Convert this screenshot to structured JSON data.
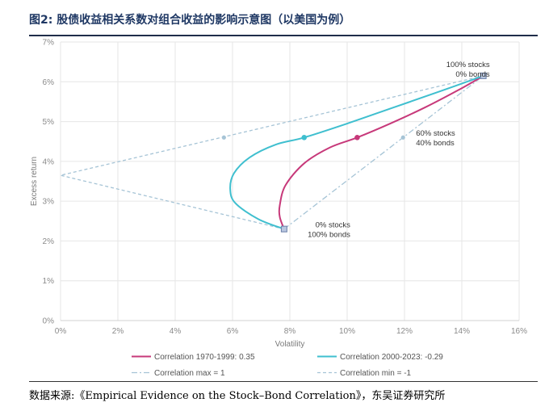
{
  "header": {
    "title": "图2:  股债收益相关系数对组合收益的影响示意图（以美国为例）"
  },
  "footer": {
    "source": "数据来源:《Empirical Evidence on the Stock–Bond Correlation》，东吴证券研究所"
  },
  "chart_data": {
    "type": "line",
    "xlabel": "Volatility",
    "ylabel": "Excess return",
    "xlim": [
      0,
      16
    ],
    "ylim": [
      0,
      7
    ],
    "x_ticks": [
      "0%",
      "2%",
      "4%",
      "6%",
      "8%",
      "10%",
      "12%",
      "14%",
      "16%"
    ],
    "y_ticks": [
      "0%",
      "1%",
      "2%",
      "3%",
      "4%",
      "5%",
      "6%",
      "7%"
    ],
    "grid": true,
    "legend_position": "bottom",
    "series": [
      {
        "name": "Correlation 1970-1999: 0.35",
        "color": "#c7397a",
        "style": "solid",
        "points": [
          [
            7.8,
            2.3
          ],
          [
            7.65,
            2.6
          ],
          [
            7.65,
            2.9
          ],
          [
            7.85,
            3.4
          ],
          [
            8.5,
            3.95
          ],
          [
            9.4,
            4.35
          ],
          [
            10.35,
            4.6
          ],
          [
            11.5,
            4.95
          ],
          [
            12.7,
            5.35
          ],
          [
            13.9,
            5.8
          ],
          [
            14.75,
            6.15
          ]
        ],
        "marker": {
          "x": 10.35,
          "y": 4.6
        }
      },
      {
        "name": "Correlation 2000-2023: -0.29",
        "color": "#3fbfcf",
        "style": "solid",
        "points": [
          [
            7.8,
            2.3
          ],
          [
            6.9,
            2.55
          ],
          [
            6.1,
            2.95
          ],
          [
            5.92,
            3.3
          ],
          [
            6.05,
            3.7
          ],
          [
            6.6,
            4.1
          ],
          [
            7.5,
            4.42
          ],
          [
            8.5,
            4.6
          ],
          [
            10.0,
            4.95
          ],
          [
            11.6,
            5.35
          ],
          [
            13.2,
            5.75
          ],
          [
            14.75,
            6.15
          ]
        ],
        "marker": {
          "x": 8.5,
          "y": 4.6
        }
      },
      {
        "name": "Correlation max = 1",
        "color": "#a6c4d6",
        "style": "dashdot",
        "points": [
          [
            7.8,
            2.3
          ],
          [
            14.75,
            6.15
          ]
        ],
        "marker": {
          "x": 11.95,
          "y": 4.6
        }
      },
      {
        "name": "Correlation min = -1",
        "color": "#a6c4d6",
        "style": "dashed",
        "points": [
          [
            7.8,
            2.3
          ],
          [
            0.0,
            3.65
          ],
          [
            14.75,
            6.15
          ]
        ],
        "marker": {
          "x": 5.7,
          "y": 4.6
        }
      }
    ],
    "endpoints": [
      {
        "x": 14.75,
        "y": 6.15,
        "label_lines": [
          "100% stocks",
          "0% bonds"
        ]
      },
      {
        "x": 7.8,
        "y": 2.3,
        "label_lines": [
          "0% stocks",
          "100% bonds"
        ]
      }
    ],
    "annotations": [
      {
        "x": 12.4,
        "y": 4.65,
        "label_lines": [
          "60% stocks",
          "40% bonds"
        ]
      }
    ]
  }
}
